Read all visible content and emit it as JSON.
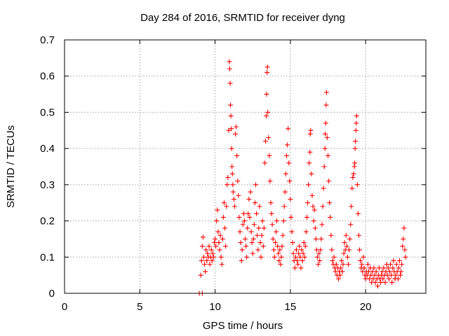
{
  "chart_data": {
    "type": "scatter",
    "title": "Day 284 of 2016, SRMTID for receiver dyng",
    "xlabel": "GPS time / hours",
    "ylabel": "SRMTID / TECUs",
    "xlim": [
      0,
      24
    ],
    "ylim": [
      0,
      0.7
    ],
    "x_ticks": [
      0,
      5,
      10,
      15,
      20
    ],
    "x_tick_labels": [
      "0",
      "5",
      "10",
      "15",
      "20"
    ],
    "y_ticks": [
      0,
      0.1,
      0.2,
      0.3,
      0.4,
      0.5,
      0.6,
      0.7
    ],
    "y_tick_labels": [
      "0",
      "0.1",
      "0.2",
      "0.3",
      "0.4",
      "0.5",
      "0.6",
      "0.7"
    ],
    "grid": true,
    "legend": "none",
    "marker": "plus",
    "color": "#ff0000",
    "series": [
      {
        "name": "SRMTID",
        "points": [
          [
            8.95,
            0.0
          ],
          [
            9.15,
            0.0
          ],
          [
            9.05,
            0.05
          ],
          [
            9.1,
            0.09
          ],
          [
            9.15,
            0.13
          ],
          [
            9.2,
            0.155
          ],
          [
            9.25,
            0.1
          ],
          [
            9.3,
            0.08
          ],
          [
            9.35,
            0.06
          ],
          [
            9.4,
            0.12
          ],
          [
            9.45,
            0.09
          ],
          [
            9.5,
            0.11
          ],
          [
            9.55,
            0.1
          ],
          [
            9.6,
            0.13
          ],
          [
            9.65,
            0.08
          ],
          [
            9.7,
            0.1
          ],
          [
            9.75,
            0.12
          ],
          [
            9.8,
            0.09
          ],
          [
            9.85,
            0.11
          ],
          [
            9.9,
            0.1
          ],
          [
            9.95,
            0.14
          ],
          [
            10.0,
            0.15
          ],
          [
            10.05,
            0.13
          ],
          [
            10.1,
            0.2
          ],
          [
            10.15,
            0.23
          ],
          [
            10.2,
            0.17
          ],
          [
            10.25,
            0.14
          ],
          [
            10.3,
            0.12
          ],
          [
            10.35,
            0.16
          ],
          [
            10.4,
            0.1
          ],
          [
            10.45,
            0.08
          ],
          [
            10.5,
            0.15
          ],
          [
            10.55,
            0.21
          ],
          [
            10.6,
            0.25
          ],
          [
            10.65,
            0.18
          ],
          [
            10.7,
            0.13
          ],
          [
            10.75,
            0.24
          ],
          [
            10.8,
            0.3
          ],
          [
            10.85,
            0.32
          ],
          [
            10.9,
            0.45
          ],
          [
            10.95,
            0.64
          ],
          [
            10.97,
            0.62
          ],
          [
            11.0,
            0.58
          ],
          [
            11.02,
            0.52
          ],
          [
            11.05,
            0.49
          ],
          [
            11.08,
            0.455
          ],
          [
            11.1,
            0.4
          ],
          [
            11.12,
            0.35
          ],
          [
            11.15,
            0.33
          ],
          [
            11.18,
            0.3
          ],
          [
            11.2,
            0.28
          ],
          [
            11.25,
            0.26
          ],
          [
            11.3,
            0.24
          ],
          [
            11.35,
            0.44
          ],
          [
            11.4,
            0.46
          ],
          [
            11.45,
            0.38
          ],
          [
            11.5,
            0.31
          ],
          [
            11.55,
            0.27
          ],
          [
            11.6,
            0.21
          ],
          [
            11.65,
            0.17
          ],
          [
            11.7,
            0.14
          ],
          [
            11.75,
            0.09
          ],
          [
            11.8,
            0.12
          ],
          [
            11.85,
            0.19
          ],
          [
            11.9,
            0.22
          ],
          [
            11.95,
            0.2
          ],
          [
            12.0,
            0.15
          ],
          [
            12.05,
            0.13
          ],
          [
            12.1,
            0.1
          ],
          [
            12.15,
            0.18
          ],
          [
            12.2,
            0.22
          ],
          [
            12.25,
            0.26
          ],
          [
            12.3,
            0.21
          ],
          [
            12.35,
            0.28
          ],
          [
            12.4,
            0.17
          ],
          [
            12.45,
            0.14
          ],
          [
            12.5,
            0.11
          ],
          [
            12.55,
            0.15
          ],
          [
            12.6,
            0.19
          ],
          [
            12.65,
            0.25
          ],
          [
            12.7,
            0.3
          ],
          [
            12.75,
            0.22
          ],
          [
            12.8,
            0.16
          ],
          [
            12.85,
            0.12
          ],
          [
            12.9,
            0.18
          ],
          [
            12.95,
            0.24
          ],
          [
            13.0,
            0.14
          ],
          [
            13.05,
            0.1
          ],
          [
            13.1,
            0.16
          ],
          [
            13.15,
            0.2
          ],
          [
            13.2,
            0.13
          ],
          [
            13.25,
            0.18
          ],
          [
            13.3,
            0.36
          ],
          [
            13.35,
            0.42
          ],
          [
            13.4,
            0.49
          ],
          [
            13.42,
            0.55
          ],
          [
            13.45,
            0.61
          ],
          [
            13.48,
            0.625
          ],
          [
            13.5,
            0.5
          ],
          [
            13.55,
            0.43
          ],
          [
            13.6,
            0.38
          ],
          [
            13.65,
            0.31
          ],
          [
            13.7,
            0.25
          ],
          [
            13.75,
            0.22
          ],
          [
            13.8,
            0.19
          ],
          [
            13.85,
            0.15
          ],
          [
            13.9,
            0.12
          ],
          [
            13.95,
            0.1
          ],
          [
            14.0,
            0.14
          ],
          [
            14.05,
            0.17
          ],
          [
            14.1,
            0.2
          ],
          [
            14.15,
            0.13
          ],
          [
            14.2,
            0.11
          ],
          [
            14.25,
            0.09
          ],
          [
            14.3,
            0.12
          ],
          [
            14.35,
            0.08
          ],
          [
            14.4,
            0.1
          ],
          [
            14.45,
            0.13
          ],
          [
            14.5,
            0.16
          ],
          [
            14.55,
            0.2
          ],
          [
            14.6,
            0.24
          ],
          [
            14.65,
            0.28
          ],
          [
            14.7,
            0.33
          ],
          [
            14.75,
            0.38
          ],
          [
            14.8,
            0.41
          ],
          [
            14.85,
            0.455
          ],
          [
            14.9,
            0.36
          ],
          [
            14.95,
            0.31
          ],
          [
            15.0,
            0.26
          ],
          [
            15.05,
            0.21
          ],
          [
            15.1,
            0.17
          ],
          [
            15.15,
            0.14
          ],
          [
            15.2,
            0.11
          ],
          [
            15.25,
            0.09
          ],
          [
            15.3,
            0.07
          ],
          [
            15.35,
            0.1
          ],
          [
            15.4,
            0.12
          ],
          [
            15.45,
            0.09
          ],
          [
            15.5,
            0.08
          ],
          [
            15.55,
            0.11
          ],
          [
            15.6,
            0.13
          ],
          [
            15.65,
            0.1
          ],
          [
            15.7,
            0.07
          ],
          [
            15.75,
            0.12
          ],
          [
            15.8,
            0.09
          ],
          [
            15.85,
            0.11
          ],
          [
            15.9,
            0.14
          ],
          [
            15.95,
            0.1
          ],
          [
            16.0,
            0.13
          ],
          [
            16.05,
            0.17
          ],
          [
            16.1,
            0.21
          ],
          [
            16.15,
            0.25
          ],
          [
            16.2,
            0.3
          ],
          [
            16.25,
            0.36
          ],
          [
            16.3,
            0.39
          ],
          [
            16.32,
            0.44
          ],
          [
            16.35,
            0.45
          ],
          [
            16.4,
            0.33
          ],
          [
            16.45,
            0.27
          ],
          [
            16.5,
            0.24
          ],
          [
            16.55,
            0.2
          ],
          [
            16.6,
            0.23
          ],
          [
            16.65,
            0.18
          ],
          [
            16.7,
            0.15
          ],
          [
            16.75,
            0.12
          ],
          [
            16.8,
            0.1
          ],
          [
            16.85,
            0.08
          ],
          [
            16.9,
            0.11
          ],
          [
            16.95,
            0.09
          ],
          [
            17.0,
            0.12
          ],
          [
            17.05,
            0.15
          ],
          [
            17.1,
            0.19
          ],
          [
            17.15,
            0.24
          ],
          [
            17.2,
            0.29
          ],
          [
            17.25,
            0.35
          ],
          [
            17.3,
            0.4
          ],
          [
            17.32,
            0.44
          ],
          [
            17.35,
            0.47
          ],
          [
            17.38,
            0.52
          ],
          [
            17.4,
            0.555
          ],
          [
            17.45,
            0.43
          ],
          [
            17.5,
            0.38
          ],
          [
            17.55,
            0.31
          ],
          [
            17.6,
            0.25
          ],
          [
            17.65,
            0.21
          ],
          [
            17.7,
            0.16
          ],
          [
            17.75,
            0.12
          ],
          [
            17.8,
            0.09
          ],
          [
            17.85,
            0.08
          ],
          [
            17.9,
            0.1
          ],
          [
            17.95,
            0.07
          ],
          [
            18.0,
            0.06
          ],
          [
            18.05,
            0.08
          ],
          [
            18.1,
            0.05
          ],
          [
            18.15,
            0.07
          ],
          [
            18.2,
            0.04
          ],
          [
            18.25,
            0.06
          ],
          [
            18.3,
            0.05
          ],
          [
            18.35,
            0.07
          ],
          [
            18.4,
            0.09
          ],
          [
            18.45,
            0.06
          ],
          [
            18.5,
            0.08
          ],
          [
            18.55,
            0.11
          ],
          [
            18.6,
            0.14
          ],
          [
            18.65,
            0.12
          ],
          [
            18.7,
            0.16
          ],
          [
            18.75,
            0.13
          ],
          [
            18.8,
            0.1
          ],
          [
            18.85,
            0.08
          ],
          [
            18.9,
            0.12
          ],
          [
            18.95,
            0.15
          ],
          [
            19.0,
            0.19
          ],
          [
            19.05,
            0.24
          ],
          [
            19.1,
            0.29
          ],
          [
            19.15,
            0.32
          ],
          [
            19.2,
            0.33
          ],
          [
            19.25,
            0.35
          ],
          [
            19.28,
            0.36
          ],
          [
            19.3,
            0.4
          ],
          [
            19.32,
            0.42
          ],
          [
            19.35,
            0.45
          ],
          [
            19.38,
            0.47
          ],
          [
            19.4,
            0.49
          ],
          [
            19.45,
            0.3
          ],
          [
            19.5,
            0.22
          ],
          [
            19.55,
            0.16
          ],
          [
            19.6,
            0.12
          ],
          [
            19.65,
            0.09
          ],
          [
            19.7,
            0.07
          ],
          [
            19.75,
            0.08
          ],
          [
            19.8,
            0.06
          ],
          [
            19.85,
            0.1
          ],
          [
            19.9,
            0.07
          ],
          [
            19.95,
            0.05
          ],
          [
            20.0,
            0.04
          ],
          [
            20.05,
            0.06
          ],
          [
            20.1,
            0.05
          ],
          [
            20.15,
            0.08
          ],
          [
            20.2,
            0.06
          ],
          [
            20.25,
            0.04
          ],
          [
            20.3,
            0.07
          ],
          [
            20.35,
            0.05
          ],
          [
            20.4,
            0.03
          ],
          [
            20.45,
            0.06
          ],
          [
            20.5,
            0.04
          ],
          [
            20.55,
            0.07
          ],
          [
            20.6,
            0.05
          ],
          [
            20.65,
            0.03
          ],
          [
            20.7,
            0.06
          ],
          [
            20.75,
            0.04
          ],
          [
            20.8,
            0.02
          ],
          [
            20.85,
            0.05
          ],
          [
            20.9,
            0.07
          ],
          [
            20.95,
            0.04
          ],
          [
            21.0,
            0.03
          ],
          [
            21.05,
            0.05
          ],
          [
            21.1,
            0.06
          ],
          [
            21.15,
            0.04
          ],
          [
            21.2,
            0.07
          ],
          [
            21.25,
            0.05
          ],
          [
            21.3,
            0.03
          ],
          [
            21.35,
            0.06
          ],
          [
            21.4,
            0.08
          ],
          [
            21.45,
            0.05
          ],
          [
            21.5,
            0.07
          ],
          [
            21.55,
            0.04
          ],
          [
            21.6,
            0.06
          ],
          [
            21.65,
            0.08
          ],
          [
            21.7,
            0.05
          ],
          [
            21.75,
            0.03
          ],
          [
            21.8,
            0.07
          ],
          [
            21.85,
            0.09
          ],
          [
            21.9,
            0.06
          ],
          [
            21.95,
            0.04
          ],
          [
            22.0,
            0.05
          ],
          [
            22.05,
            0.08
          ],
          [
            22.1,
            0.06
          ],
          [
            22.15,
            0.04
          ],
          [
            22.2,
            0.07
          ],
          [
            22.25,
            0.09
          ],
          [
            22.3,
            0.05
          ],
          [
            22.35,
            0.06
          ],
          [
            22.4,
            0.08
          ],
          [
            22.45,
            0.13
          ],
          [
            22.5,
            0.15
          ],
          [
            22.55,
            0.18
          ],
          [
            22.6,
            0.12
          ],
          [
            22.65,
            0.1
          ]
        ]
      }
    ]
  }
}
